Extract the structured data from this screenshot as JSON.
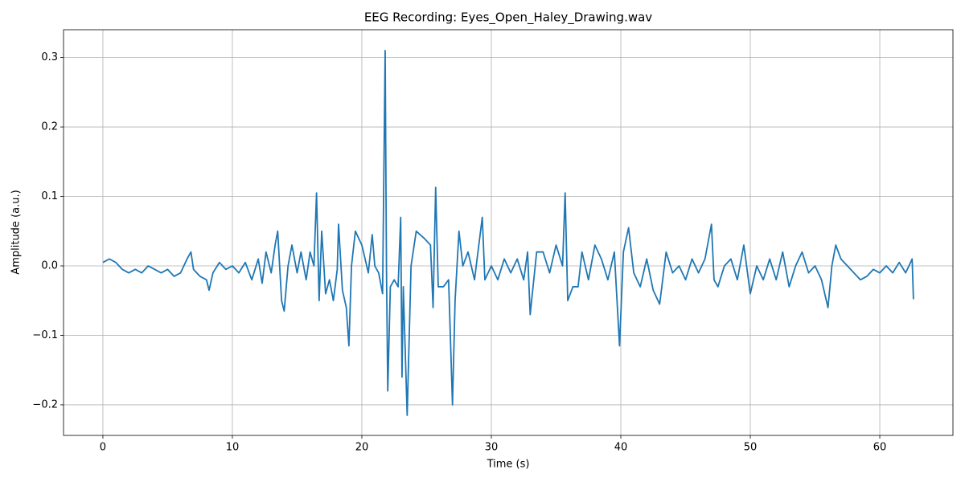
{
  "chart_data": {
    "type": "line",
    "title": "EEG Recording: Eyes_Open_Haley_Drawing.wav",
    "xlabel": "Time (s)",
    "ylabel": "Amplitude (a.u.)",
    "color": "#1f77b4",
    "grid": true,
    "xlim": [
      -3.04,
      65.65
    ],
    "ylim": [
      -0.244,
      0.34
    ],
    "xticks": [
      0,
      10,
      20,
      30,
      40,
      50,
      60
    ],
    "yticks": [
      {
        "value": -0.2,
        "label": "−0.2"
      },
      {
        "value": -0.1,
        "label": "−0.1"
      },
      {
        "value": 0,
        "label": "0.0"
      },
      0.1,
      0.2,
      0.3
    ],
    "x": [
      0,
      0.5,
      1,
      1.5,
      2,
      2.5,
      3,
      3.5,
      4,
      4.5,
      5,
      5.5,
      6,
      6.5,
      6.8,
      7,
      7.5,
      8,
      8.2,
      8.5,
      9,
      9.5,
      10,
      10.5,
      11,
      11.5,
      12,
      12.3,
      12.6,
      13,
      13.3,
      13.5,
      13.8,
      14,
      14.3,
      14.6,
      15,
      15.3,
      15.7,
      16,
      16.3,
      16.5,
      16.7,
      16.9,
      17.2,
      17.5,
      17.8,
      18.1,
      18.2,
      18.5,
      18.8,
      19,
      19.2,
      19.5,
      20,
      20.5,
      20.8,
      21,
      21.3,
      21.6,
      21.8,
      21.9,
      22,
      22.2,
      22.5,
      22.8,
      23,
      23.1,
      23.2,
      23.5,
      23.8,
      24.2,
      24.8,
      25.3,
      25.5,
      25.7,
      25.9,
      26.3,
      26.7,
      27,
      27.2,
      27.5,
      27.8,
      28.2,
      28.7,
      29.3,
      29.5,
      30,
      30.5,
      31,
      31.5,
      32,
      32.5,
      32.8,
      33,
      33.5,
      34,
      34.5,
      35,
      35.5,
      35.7,
      35.9,
      36.3,
      36.7,
      37,
      37.5,
      38,
      38.5,
      39,
      39.5,
      39.9,
      40.2,
      40.6,
      41,
      41.5,
      42,
      42.5,
      43,
      43.5,
      44,
      44.5,
      45,
      45.5,
      46,
      46.5,
      47,
      47.2,
      47.5,
      48,
      48.5,
      49,
      49.5,
      50,
      50.5,
      51,
      51.5,
      52,
      52.5,
      53,
      53.5,
      54,
      54.5,
      55,
      55.5,
      56,
      56.3,
      56.6,
      57,
      57.5,
      58,
      58.5,
      59,
      59.5,
      60,
      60.5,
      61,
      61.5,
      62,
      62.5,
      62.6
    ],
    "values": [
      0.005,
      0.01,
      0.005,
      -0.005,
      -0.01,
      -0.005,
      -0.01,
      0,
      -0.005,
      -0.01,
      -0.005,
      -0.015,
      -0.01,
      0.01,
      0.02,
      -0.005,
      -0.015,
      -0.02,
      -0.035,
      -0.01,
      0.005,
      -0.005,
      0,
      -0.01,
      0.005,
      -0.02,
      0.01,
      -0.025,
      0.02,
      -0.01,
      0.03,
      0.05,
      -0.05,
      -0.065,
      0,
      0.03,
      -0.01,
      0.02,
      -0.02,
      0.02,
      0,
      0.105,
      -0.05,
      0.05,
      -0.04,
      -0.02,
      -0.05,
      -0.005,
      0.06,
      -0.035,
      -0.06,
      -0.115,
      0,
      0.05,
      0.03,
      -0.01,
      0.045,
      0,
      -0.01,
      -0.04,
      0.31,
      0,
      -0.18,
      -0.03,
      -0.02,
      -0.03,
      0.07,
      -0.16,
      -0.03,
      -0.215,
      0,
      0.05,
      0.04,
      0.03,
      -0.06,
      0.113,
      -0.03,
      -0.03,
      -0.02,
      -0.2,
      -0.05,
      0.05,
      0,
      0.02,
      -0.02,
      0.07,
      -0.02,
      0,
      -0.02,
      0.01,
      -0.01,
      0.01,
      -0.02,
      0.02,
      -0.07,
      0.02,
      0.02,
      -0.01,
      0.03,
      0,
      0.105,
      -0.05,
      -0.03,
      -0.03,
      0.02,
      -0.02,
      0.03,
      0.01,
      -0.02,
      0.02,
      -0.115,
      0.02,
      0.055,
      -0.01,
      -0.03,
      0.01,
      -0.035,
      -0.055,
      0.02,
      -0.01,
      0,
      -0.02,
      0.01,
      -0.01,
      0.01,
      0.06,
      -0.02,
      -0.03,
      0,
      0.01,
      -0.02,
      0.03,
      -0.04,
      0,
      -0.02,
      0.01,
      -0.02,
      0.02,
      -0.03,
      0,
      0.02,
      -0.01,
      0,
      -0.02,
      -0.06,
      0,
      0.03,
      0.01,
      0,
      -0.01,
      -0.02,
      -0.015,
      -0.005,
      -0.01,
      0,
      -0.01,
      0.005,
      -0.01,
      0.01,
      -0.048
    ]
  }
}
